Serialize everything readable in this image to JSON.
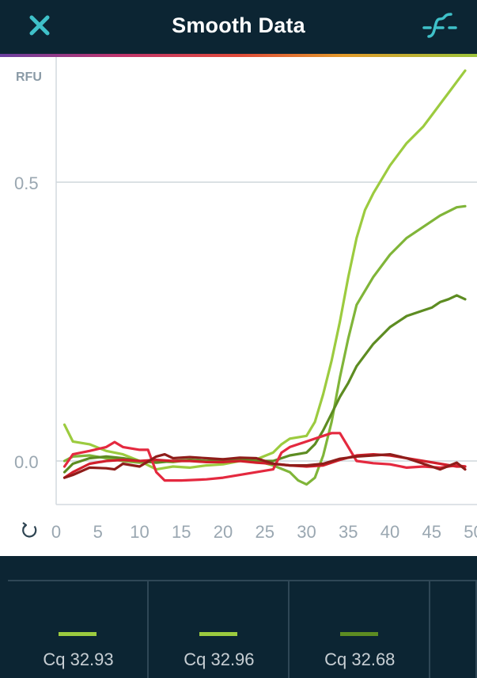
{
  "header": {
    "title": "Smooth Data",
    "close_icon": "close-icon",
    "smooth_icon": "smooth-curve-icon",
    "accent": "#3fc1c9"
  },
  "chart_data": {
    "type": "line",
    "ylabel": "RFU",
    "xlabel": "",
    "xlim": [
      0,
      50
    ],
    "ylim": [
      -0.065,
      0.72
    ],
    "x_ticks": [
      "0",
      "5",
      "10",
      "15",
      "20",
      "25",
      "30",
      "35",
      "40",
      "45",
      "50"
    ],
    "y_ticks": [
      "0.5",
      "0.0"
    ],
    "y_tick_values": [
      0.5,
      0.0
    ],
    "grid": "horizontal",
    "reset_icon": "refresh-icon",
    "series": [
      {
        "color": "#9ccb3f",
        "x": [
          1,
          2,
          4,
          6,
          8,
          10,
          12,
          14,
          16,
          18,
          20,
          22,
          24,
          26,
          27,
          28,
          30,
          31,
          32,
          33,
          34,
          35,
          36,
          37,
          38,
          40,
          42,
          44,
          45,
          46,
          47,
          48,
          49
        ],
        "y": [
          0.065,
          0.035,
          0.03,
          0.018,
          0.012,
          0.0,
          -0.015,
          -0.01,
          -0.012,
          -0.008,
          -0.006,
          0.0,
          0.003,
          0.015,
          0.03,
          0.04,
          0.045,
          0.07,
          0.12,
          0.18,
          0.25,
          0.33,
          0.4,
          0.45,
          0.48,
          0.53,
          0.57,
          0.6,
          0.62,
          0.64,
          0.66,
          0.68,
          0.7
        ]
      },
      {
        "color": "#80b539",
        "x": [
          1,
          2,
          4,
          6,
          8,
          10,
          12,
          14,
          16,
          18,
          20,
          22,
          24,
          26,
          28,
          29,
          30,
          31,
          32,
          33,
          34,
          35,
          36,
          38,
          40,
          42,
          44,
          46,
          48,
          49
        ],
        "y": [
          0.0,
          0.008,
          0.01,
          0.005,
          0.0,
          -0.003,
          0.0,
          -0.002,
          0.002,
          0.0,
          0.003,
          0.002,
          0.0,
          -0.008,
          -0.02,
          -0.035,
          -0.042,
          -0.03,
          0.01,
          0.07,
          0.15,
          0.22,
          0.28,
          0.33,
          0.37,
          0.4,
          0.42,
          0.44,
          0.455,
          0.457
        ]
      },
      {
        "color": "#5d8c22",
        "x": [
          1,
          2,
          4,
          6,
          8,
          10,
          12,
          14,
          16,
          18,
          20,
          22,
          24,
          26,
          28,
          30,
          31,
          32,
          33,
          34,
          35,
          36,
          38,
          40,
          42,
          44,
          45,
          46,
          47,
          48,
          49
        ],
        "y": [
          -0.02,
          -0.005,
          0.005,
          0.008,
          0.005,
          0.0,
          -0.003,
          0.0,
          0.002,
          0.0,
          0.0,
          0.002,
          0.0,
          0.0,
          0.01,
          0.015,
          0.03,
          0.055,
          0.085,
          0.115,
          0.14,
          0.17,
          0.21,
          0.24,
          0.26,
          0.27,
          0.275,
          0.285,
          0.29,
          0.297,
          0.29
        ]
      },
      {
        "color": "#e4293f",
        "x": [
          1,
          2,
          4,
          6,
          7,
          8,
          10,
          11,
          12,
          13,
          15,
          18,
          20,
          22,
          24,
          26,
          27,
          28,
          30,
          32,
          33,
          34,
          35,
          36,
          38,
          40,
          42,
          44,
          46,
          48,
          49
        ],
        "y": [
          -0.01,
          0.012,
          0.018,
          0.025,
          0.034,
          0.025,
          0.02,
          0.02,
          -0.02,
          -0.035,
          -0.035,
          -0.033,
          -0.03,
          -0.025,
          -0.02,
          -0.015,
          0.015,
          0.025,
          0.035,
          0.045,
          0.05,
          0.05,
          0.025,
          0.0,
          -0.004,
          -0.006,
          -0.012,
          -0.01,
          -0.012,
          -0.008,
          -0.01
        ]
      },
      {
        "color": "#d11f2c",
        "x": [
          1,
          2,
          4,
          6,
          8,
          10,
          12,
          14,
          16,
          18,
          20,
          22,
          24,
          26,
          28,
          30,
          32,
          34,
          36,
          38,
          40,
          42,
          44,
          46,
          48,
          49
        ],
        "y": [
          -0.03,
          -0.02,
          -0.005,
          0.0,
          0.002,
          0.0,
          0.002,
          0.0,
          0.0,
          -0.002,
          -0.002,
          0.0,
          -0.003,
          -0.005,
          -0.008,
          -0.01,
          -0.008,
          0.002,
          0.01,
          0.012,
          0.01,
          0.005,
          0.0,
          -0.005,
          -0.01,
          -0.01
        ]
      },
      {
        "color": "#8f1d1a",
        "x": [
          1,
          2,
          4,
          6,
          7,
          8,
          10,
          12,
          13,
          14,
          16,
          18,
          20,
          22,
          24,
          26,
          28,
          30,
          32,
          34,
          36,
          38,
          40,
          42,
          44,
          46,
          48,
          49
        ],
        "y": [
          -0.03,
          -0.025,
          -0.012,
          -0.013,
          -0.015,
          -0.005,
          -0.01,
          0.008,
          0.012,
          0.005,
          0.007,
          0.005,
          0.003,
          0.006,
          0.005,
          -0.005,
          -0.008,
          -0.008,
          -0.005,
          0.004,
          0.008,
          0.01,
          0.012,
          0.005,
          -0.005,
          -0.015,
          -0.003,
          -0.015
        ]
      }
    ]
  },
  "wells": [
    {
      "color": "#9ccb3f",
      "cq": "Cq 32.93"
    },
    {
      "color": "#9ccb3f",
      "cq": "Cq 32.96"
    },
    {
      "color": "#5d8c22",
      "cq": "Cq 32.68"
    },
    {
      "color": "#0c2533",
      "cq": ""
    }
  ]
}
